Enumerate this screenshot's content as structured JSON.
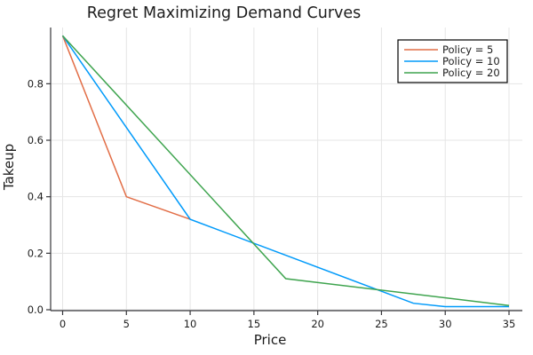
{
  "figure": {
    "background": "#ffffff",
    "text_color": "#1c1c1c",
    "tick_label_color": "#1c1c1c",
    "grid_color": "#e5e5e5",
    "axis_color": "#36363a"
  },
  "legend": {
    "background": "#ffffff",
    "border_color": "#000000",
    "entries": [
      "Policy = 5",
      "Policy = 10",
      "Policy = 20"
    ]
  },
  "chart_data": {
    "type": "line",
    "title": "Regret Maximizing Demand Curves",
    "xlabel": "Price",
    "ylabel": "Takeup",
    "xlim": [
      -1,
      36
    ],
    "ylim": [
      0,
      1.0
    ],
    "xticks": [
      0,
      5,
      10,
      15,
      20,
      25,
      30,
      35
    ],
    "yticks": [
      0.0,
      0.2,
      0.4,
      0.6,
      0.8
    ],
    "grid": true,
    "legend_position": "top-right",
    "series": [
      {
        "name": "Policy = 5",
        "color": "#e26e47",
        "points": [
          [
            0,
            0.97
          ],
          [
            5,
            0.4
          ],
          [
            10,
            0.32
          ]
        ]
      },
      {
        "name": "Policy = 10",
        "color": "#009afa",
        "points": [
          [
            0,
            0.97
          ],
          [
            10,
            0.32
          ],
          [
            27.5,
            0.023
          ],
          [
            30,
            0.011
          ],
          [
            35,
            0.011
          ]
        ]
      },
      {
        "name": "Policy = 20",
        "color": "#3ea44e",
        "points": [
          [
            0,
            0.97
          ],
          [
            17.5,
            0.11
          ],
          [
            35,
            0.015
          ]
        ]
      }
    ]
  }
}
